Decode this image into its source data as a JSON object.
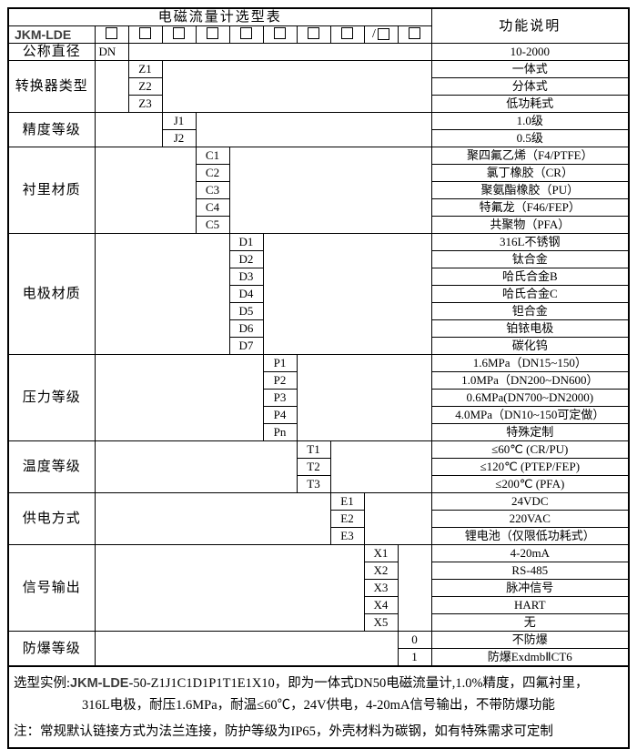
{
  "title": "电磁流量计选型表",
  "right_header": "功能说明",
  "colors": {
    "border": "#000000",
    "background": "#ffffff",
    "model_text": "#3d3d3d"
  },
  "model": {
    "label": "JKM-LDE",
    "box_count": 10,
    "slash_before_box": 9,
    "separator": "/"
  },
  "sections": [
    {
      "name": "公称直径",
      "col": 1,
      "rows": [
        {
          "code": "DN",
          "desc": "10-2000"
        }
      ]
    },
    {
      "name": "转换器类型",
      "col": 2,
      "rows": [
        {
          "code": "Z1",
          "desc": "一体式"
        },
        {
          "code": "Z2",
          "desc": "分体式"
        },
        {
          "code": "Z3",
          "desc": "低功耗式"
        }
      ]
    },
    {
      "name": "精度等级",
      "col": 3,
      "rows": [
        {
          "code": "J1",
          "desc": "1.0级"
        },
        {
          "code": "J2",
          "desc": "0.5级"
        }
      ]
    },
    {
      "name": "衬里材质",
      "col": 4,
      "rows": [
        {
          "code": "C1",
          "desc": "聚四氟乙烯（F4/PTFE）"
        },
        {
          "code": "C2",
          "desc": "氯丁橡胶（CR）"
        },
        {
          "code": "C3",
          "desc": "聚氨酯橡胶（PU）"
        },
        {
          "code": "C4",
          "desc": "特氟龙（F46/FEP）"
        },
        {
          "code": "C5",
          "desc": "共聚物（PFA）"
        }
      ]
    },
    {
      "name": "电极材质",
      "col": 5,
      "rows": [
        {
          "code": "D1",
          "desc": "316L不锈钢"
        },
        {
          "code": "D2",
          "desc": "钛合金"
        },
        {
          "code": "D3",
          "desc": "哈氏合金B"
        },
        {
          "code": "D4",
          "desc": "哈氏合金C"
        },
        {
          "code": "D5",
          "desc": "钽合金"
        },
        {
          "code": "D6",
          "desc": "铂铱电极"
        },
        {
          "code": "D7",
          "desc": "碳化钨"
        }
      ]
    },
    {
      "name": "压力等级",
      "col": 6,
      "rows": [
        {
          "code": "P1",
          "desc": "1.6MPa（DN15~150）"
        },
        {
          "code": "P2",
          "desc": "1.0MPa（DN200~DN600）"
        },
        {
          "code": "P3",
          "desc": "0.6MPa(DN700~DN2000)"
        },
        {
          "code": "P4",
          "desc": "4.0MPa（DN10~150可定做）"
        },
        {
          "code": "Pn",
          "desc": "特殊定制"
        }
      ]
    },
    {
      "name": "温度等级",
      "col": 7,
      "rows": [
        {
          "code": "T1",
          "desc": "≤60℃ (CR/PU)"
        },
        {
          "code": "T2",
          "desc": "≤120℃ (PTEP/FEP)"
        },
        {
          "code": "T3",
          "desc": "≤200℃ (PFA)"
        }
      ]
    },
    {
      "name": "供电方式",
      "col": 8,
      "rows": [
        {
          "code": "E1",
          "desc": "24VDC"
        },
        {
          "code": "E2",
          "desc": "220VAC"
        },
        {
          "code": "E3",
          "desc": "锂电池（仅限低功耗式）"
        }
      ]
    },
    {
      "name": "信号输出",
      "col": 9,
      "rows": [
        {
          "code": "X1",
          "desc": "4-20mA"
        },
        {
          "code": "X2",
          "desc": "RS-485"
        },
        {
          "code": "X3",
          "desc": "脉冲信号"
        },
        {
          "code": "X4",
          "desc": "HART"
        },
        {
          "code": "X5",
          "desc": "无"
        }
      ]
    },
    {
      "name": "防爆等级",
      "col": 10,
      "rows": [
        {
          "code": "0",
          "desc": "不防爆"
        },
        {
          "code": "1",
          "desc": "防爆ExdmbⅡCT6"
        }
      ]
    }
  ],
  "footer": {
    "example_prefix": "选型实例:",
    "example_model": "JKM-LDE",
    "example_rest": "-50-Z1J1C1D1P1T1E1X10，即为一体式DN50电磁流量计,1.0%精度，四氟衬里，",
    "example_line2": "316L电极，耐压1.6MPa，耐温≤60℃，24V供电，4-20mA信号输出，不带防爆功能",
    "note": "注：常规默认链接方式为法兰连接，防护等级为IP65，外壳材料为碳钢，如有特殊需求可定制"
  }
}
